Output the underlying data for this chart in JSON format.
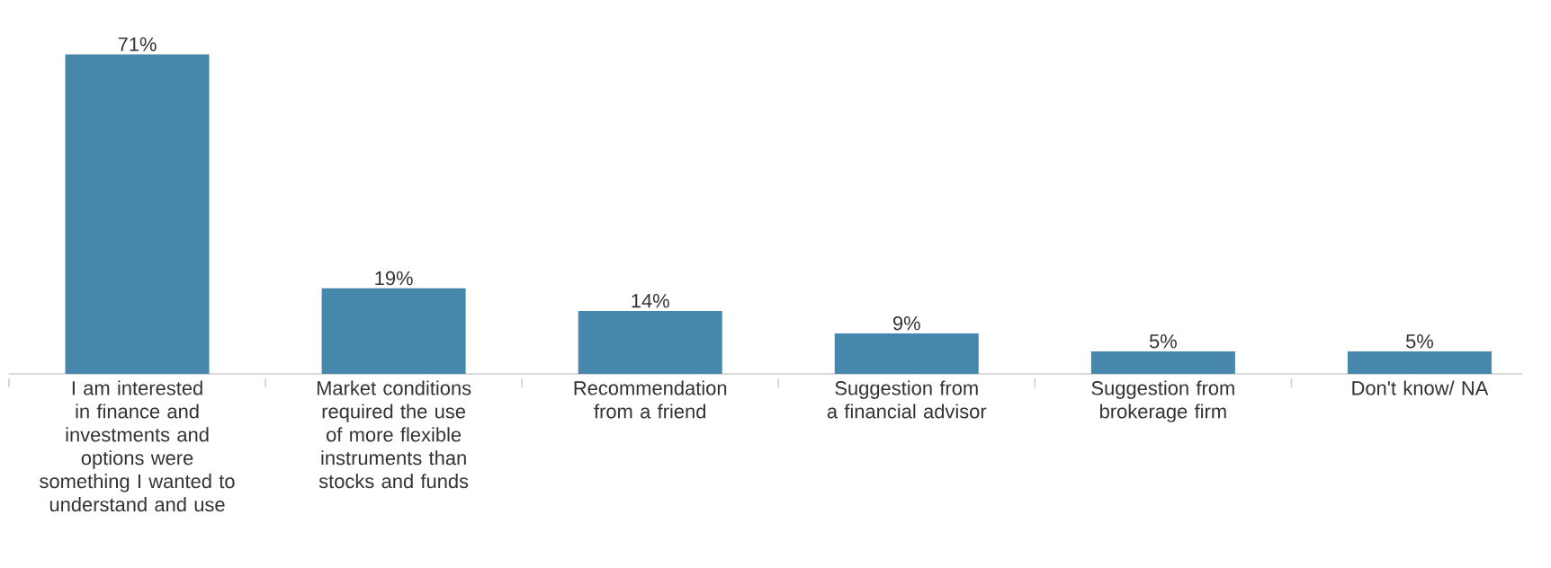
{
  "chart_data": {
    "type": "bar",
    "categories": [
      "I am interested in finance and investments and options were something I wanted to understand and use",
      "Market conditions required the use of more flexible instruments than stocks and funds",
      "Recommendation from a friend",
      "Suggestion from a financial advisor",
      "Suggestion from brokerage firm",
      "Don't know/ NA"
    ],
    "values": [
      71,
      19,
      14,
      9,
      5,
      5
    ],
    "value_labels": [
      "71%",
      "19%",
      "14%",
      "9%",
      "5%",
      "5%"
    ],
    "color": "#4787ab"
  }
}
